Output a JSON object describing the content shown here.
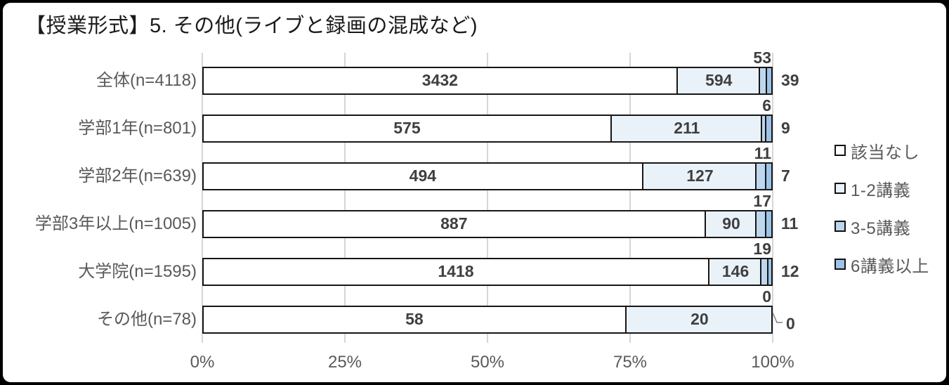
{
  "title": "【授業形式】5. その他(ライブと録画の混成など)",
  "chart_data": {
    "type": "bar",
    "stacked": true,
    "orientation": "horizontal",
    "normalized": "percent_of_row_total",
    "title": "【授業形式】5. その他(ライブと録画の混成など)",
    "categories": [
      "全体(n=4118)",
      "学部1年(n=801)",
      "学部2年(n=639)",
      "学部3年以上(n=1005)",
      "大学院(n=1595)",
      "その他(n=78)"
    ],
    "totals": [
      4118,
      801,
      639,
      1005,
      1595,
      78
    ],
    "series": [
      {
        "name": "該当なし",
        "key": "none",
        "color": "#FFFFFF",
        "values": [
          3432,
          575,
          494,
          887,
          1418,
          58
        ]
      },
      {
        "name": "1-2講義",
        "key": "1-2",
        "color": "#EAF2F9",
        "values": [
          594,
          211,
          127,
          90,
          146,
          20
        ]
      },
      {
        "name": "3-5講義",
        "key": "3-5",
        "color": "#BDD7EE",
        "values": [
          53,
          6,
          11,
          17,
          19,
          0
        ]
      },
      {
        "name": "6講義以上",
        "key": "6plus",
        "color": "#9DC3E6",
        "values": [
          39,
          9,
          7,
          11,
          12,
          0
        ]
      }
    ],
    "x_axis": {
      "ticks": [
        "0%",
        "25%",
        "50%",
        "75%",
        "100%"
      ],
      "tick_values": [
        0,
        25,
        50,
        75,
        100
      ],
      "range": [
        0,
        100
      ],
      "gridlines": true
    },
    "legend": {
      "position": "right",
      "items": [
        "該当なし",
        "1-2講義",
        "3-5講義",
        "6講義以上"
      ]
    }
  },
  "colors": {
    "background": "#FFFFFF",
    "frame": "#000000",
    "grid": "#D6D6D6",
    "bar_border": "#161616",
    "value_text": "#3F3F3F",
    "label_text": "#595959",
    "title_text": "#1A1A1A",
    "leader_line": "#7F7F7F"
  }
}
